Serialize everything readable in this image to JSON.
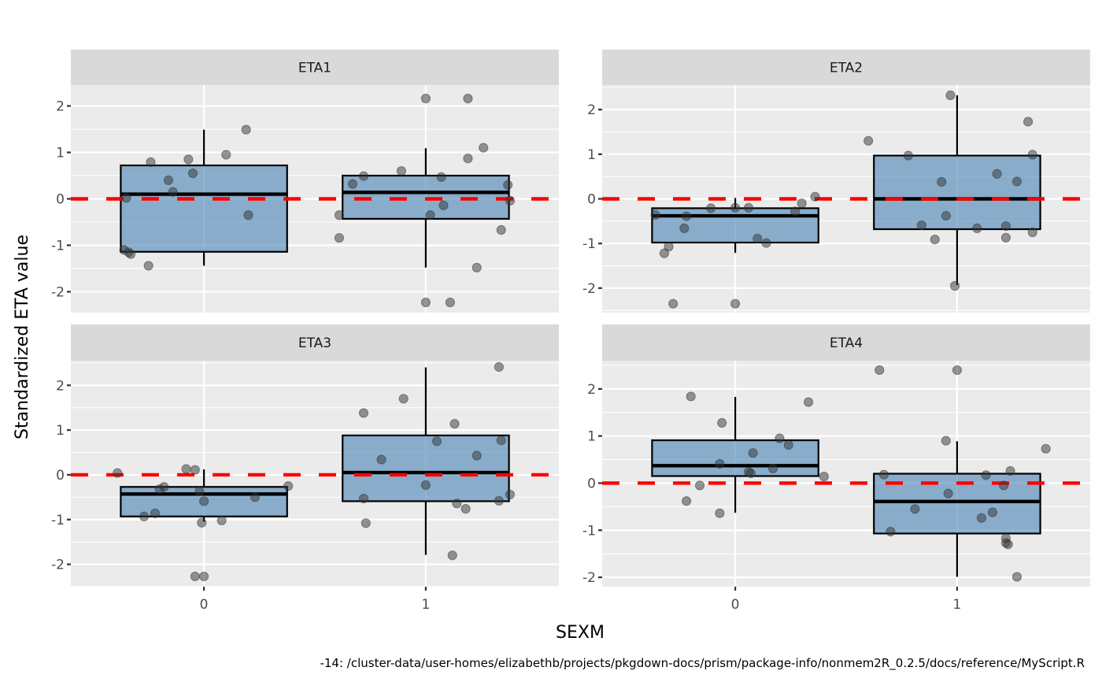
{
  "chart_data": {
    "type": "box",
    "xlabel": "SEXM",
    "ylabel": "Standardized ETA value",
    "caption": "-14: /cluster-data/user-homes/elizabethb/projects/pkgdown-docs/prism/package-info/nonmem2R_0.2.5/docs/reference/MyScript.R",
    "categories": [
      "0",
      "1"
    ],
    "xlim": [
      -0.6,
      1.6
    ],
    "reference_line": {
      "y": 0,
      "color": "#ff0000",
      "style": "dashed"
    },
    "colors": {
      "box_fill": "#4682b4",
      "box_fill_alpha": 0.6,
      "box_stroke": "#000000",
      "point": "#333333",
      "point_alpha": 0.5,
      "panel_bg": "#ebebeb",
      "strip_bg": "#d9d9d9",
      "grid": "#ffffff"
    },
    "panels": [
      {
        "title": "ETA1",
        "ylim": [
          -2.45,
          2.45
        ],
        "yticks": [
          -2,
          -1,
          0,
          1,
          2
        ],
        "groups": [
          {
            "x": "0",
            "box": {
              "lower_whisker": -1.44,
              "q1": -1.14,
              "median": 0.1,
              "q3": 0.72,
              "upper_whisker": 1.49
            },
            "points": [
              [
                0.19,
                1.49
              ],
              [
                0.1,
                0.95
              ],
              [
                -0.07,
                0.85
              ],
              [
                -0.24,
                0.79
              ],
              [
                -0.05,
                0.55
              ],
              [
                -0.16,
                0.4
              ],
              [
                -0.14,
                0.15
              ],
              [
                -0.35,
                0.02
              ],
              [
                0.2,
                -0.35
              ],
              [
                -0.36,
                -1.1
              ],
              [
                -0.34,
                -1.15
              ],
              [
                -0.33,
                -1.19
              ],
              [
                -0.25,
                -1.44
              ]
            ]
          },
          {
            "x": "1",
            "box": {
              "lower_whisker": -1.48,
              "q1": -0.43,
              "median": 0.14,
              "q3": 0.5,
              "upper_whisker": 1.09
            },
            "points": [
              [
                0.0,
                2.16
              ],
              [
                0.19,
                2.16
              ],
              [
                0.26,
                1.1
              ],
              [
                0.19,
                0.87
              ],
              [
                -0.11,
                0.6
              ],
              [
                -0.28,
                0.49
              ],
              [
                0.07,
                0.47
              ],
              [
                -0.33,
                0.32
              ],
              [
                0.37,
                0.3
              ],
              [
                0.38,
                -0.04
              ],
              [
                0.08,
                -0.14
              ],
              [
                -0.39,
                -0.35
              ],
              [
                0.02,
                -0.35
              ],
              [
                0.34,
                -0.67
              ],
              [
                -0.39,
                -0.84
              ],
              [
                0.23,
                -1.48
              ],
              [
                0.0,
                -2.23
              ],
              [
                0.11,
                -2.23
              ]
            ]
          }
        ]
      },
      {
        "title": "ETA2",
        "ylim": [
          -2.55,
          2.55
        ],
        "yticks": [
          -2,
          -1,
          0,
          1,
          2
        ],
        "groups": [
          {
            "x": "0",
            "box": {
              "lower_whisker": -1.21,
              "q1": -0.98,
              "median": -0.38,
              "q3": -0.21,
              "upper_whisker": 0.02
            },
            "points": [
              [
                0.36,
                0.05
              ],
              [
                0.3,
                -0.1
              ],
              [
                0.27,
                -0.28
              ],
              [
                -0.11,
                -0.21
              ],
              [
                0.0,
                -0.2
              ],
              [
                0.06,
                -0.2
              ],
              [
                -0.36,
                -0.36
              ],
              [
                -0.22,
                -0.39
              ],
              [
                -0.23,
                -0.66
              ],
              [
                0.1,
                -0.89
              ],
              [
                0.14,
                -0.99
              ],
              [
                -0.3,
                -1.07
              ],
              [
                -0.32,
                -1.22
              ],
              [
                -0.28,
                -2.35
              ],
              [
                0.0,
                -2.35
              ]
            ]
          },
          {
            "x": "1",
            "box": {
              "lower_whisker": -1.93,
              "q1": -0.68,
              "median": 0.0,
              "q3": 0.97,
              "upper_whisker": 2.32
            },
            "points": [
              [
                -0.03,
                2.32
              ],
              [
                0.32,
                1.73
              ],
              [
                -0.4,
                1.3
              ],
              [
                -0.22,
                0.97
              ],
              [
                0.34,
                0.99
              ],
              [
                0.18,
                0.56
              ],
              [
                -0.07,
                0.38
              ],
              [
                0.27,
                0.39
              ],
              [
                -0.05,
                -0.38
              ],
              [
                -0.16,
                -0.59
              ],
              [
                0.09,
                -0.66
              ],
              [
                0.22,
                -0.61
              ],
              [
                0.34,
                -0.75
              ],
              [
                -0.1,
                -0.91
              ],
              [
                0.22,
                -0.87
              ],
              [
                -0.01,
                -1.95
              ]
            ]
          }
        ]
      },
      {
        "title": "ETA3",
        "ylim": [
          -2.5,
          2.55
        ],
        "yticks": [
          -2,
          -1,
          0,
          1,
          2
        ],
        "groups": [
          {
            "x": "0",
            "box": {
              "lower_whisker": -1.05,
              "q1": -0.93,
              "median": -0.43,
              "q3": -0.27,
              "upper_whisker": 0.12
            },
            "points": [
              [
                -0.39,
                0.04
              ],
              [
                -0.08,
                0.13
              ],
              [
                -0.04,
                0.11
              ],
              [
                0.38,
                -0.25
              ],
              [
                -0.18,
                -0.27
              ],
              [
                -0.2,
                -0.32
              ],
              [
                -0.02,
                -0.37
              ],
              [
                0.23,
                -0.5
              ],
              [
                0.0,
                -0.59
              ],
              [
                -0.22,
                -0.86
              ],
              [
                -0.27,
                -0.93
              ],
              [
                0.08,
                -1.02
              ],
              [
                -0.01,
                -1.07
              ],
              [
                -0.04,
                -2.27
              ],
              [
                0.0,
                -2.27
              ]
            ]
          },
          {
            "x": "1",
            "box": {
              "lower_whisker": -1.79,
              "q1": -0.59,
              "median": 0.05,
              "q3": 0.88,
              "upper_whisker": 2.4
            },
            "points": [
              [
                0.33,
                2.41
              ],
              [
                -0.1,
                1.7
              ],
              [
                -0.28,
                1.38
              ],
              [
                0.13,
                1.14
              ],
              [
                0.34,
                0.77
              ],
              [
                0.05,
                0.75
              ],
              [
                0.23,
                0.43
              ],
              [
                -0.2,
                0.34
              ],
              [
                0.0,
                -0.23
              ],
              [
                0.38,
                -0.44
              ],
              [
                -0.28,
                -0.53
              ],
              [
                0.33,
                -0.58
              ],
              [
                0.14,
                -0.64
              ],
              [
                0.18,
                -0.76
              ],
              [
                -0.27,
                -1.08
              ],
              [
                0.12,
                -1.8
              ]
            ]
          }
        ]
      },
      {
        "title": "ETA4",
        "ylim": [
          -2.2,
          2.6
        ],
        "yticks": [
          -2,
          -1,
          0,
          1,
          2
        ],
        "groups": [
          {
            "x": "0",
            "box": {
              "lower_whisker": -0.63,
              "q1": 0.15,
              "median": 0.37,
              "q3": 0.91,
              "upper_whisker": 1.83
            },
            "points": [
              [
                -0.2,
                1.84
              ],
              [
                0.33,
                1.72
              ],
              [
                -0.06,
                1.28
              ],
              [
                0.2,
                0.95
              ],
              [
                0.24,
                0.81
              ],
              [
                0.08,
                0.64
              ],
              [
                -0.07,
                0.41
              ],
              [
                0.17,
                0.31
              ],
              [
                0.06,
                0.24
              ],
              [
                0.07,
                0.21
              ],
              [
                0.4,
                0.14
              ],
              [
                -0.16,
                -0.05
              ],
              [
                -0.22,
                -0.38
              ],
              [
                -0.07,
                -0.64
              ]
            ]
          },
          {
            "x": "1",
            "box": {
              "lower_whisker": -1.99,
              "q1": -1.07,
              "median": -0.39,
              "q3": 0.2,
              "upper_whisker": 0.89
            },
            "points": [
              [
                -0.35,
                2.4
              ],
              [
                0.0,
                2.4
              ],
              [
                -0.05,
                0.9
              ],
              [
                0.4,
                0.73
              ],
              [
                -0.33,
                0.18
              ],
              [
                0.13,
                0.17
              ],
              [
                0.24,
                0.26
              ],
              [
                0.21,
                -0.05
              ],
              [
                -0.04,
                -0.22
              ],
              [
                -0.19,
                -0.55
              ],
              [
                0.16,
                -0.62
              ],
              [
                0.11,
                -0.74
              ],
              [
                -0.3,
                -1.03
              ],
              [
                0.22,
                -1.17
              ],
              [
                0.22,
                -1.27
              ],
              [
                0.23,
                -1.3
              ],
              [
                0.27,
                -1.99
              ]
            ]
          }
        ]
      }
    ]
  }
}
